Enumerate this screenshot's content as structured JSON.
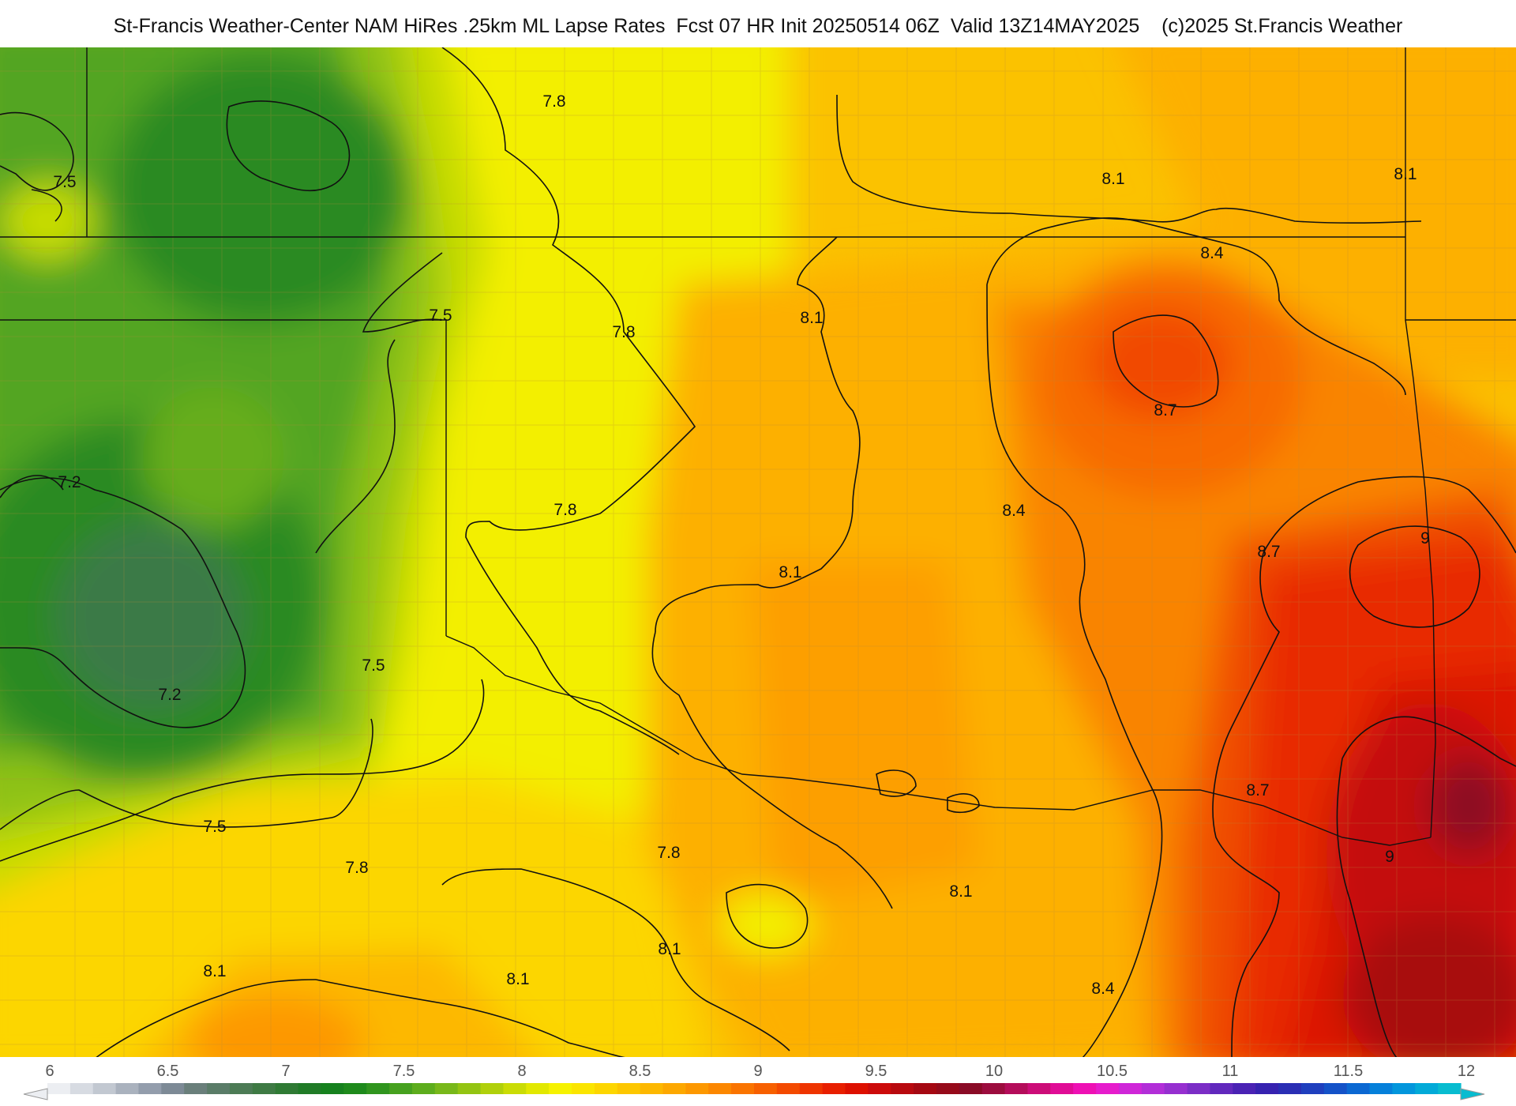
{
  "title": "St-Francis Weather-Center NAM HiRes .25km ML Lapse Rates  Fcst 07 HR Init 20250514 06Z  Valid 13Z14MAY2025    (c)2025 St.Francis Weather",
  "contour_labels": [
    "7.8",
    "7.5",
    "8.1",
    "8.1",
    "8.4",
    "7.5",
    "7.8",
    "8.1",
    "8.7",
    "7.2",
    "7.8",
    "8.4",
    "8.7",
    "9",
    "8.1",
    "7.5",
    "7.2",
    "8.7",
    "7.5",
    "7.8",
    "9",
    "8.1",
    "7.8",
    "8.1",
    "8.1",
    "8.1",
    "8.4"
  ],
  "colorbar": {
    "tick_labels": [
      "6",
      "6.5",
      "7",
      "7.5",
      "8",
      "8.5",
      "9",
      "9.5",
      "10",
      "10.5",
      "11",
      "11.5",
      "12"
    ],
    "range": [
      6,
      12
    ],
    "colors": [
      "#eceef2",
      "#d7dbe2",
      "#c2c8d1",
      "#aab2be",
      "#939dac",
      "#7d8a96",
      "#6a7f7b",
      "#5a7c68",
      "#4c7b55",
      "#3e7a44",
      "#2f7a34",
      "#207b27",
      "#16811e",
      "#1e8a1c",
      "#30951e",
      "#46a11f",
      "#5dad1d",
      "#78b81a",
      "#93c412",
      "#b0d00b",
      "#cadc05",
      "#e2e800",
      "#f6f200",
      "#fbe500",
      "#fdd600",
      "#fdc700",
      "#fdb800",
      "#fda800",
      "#fd9800",
      "#fc8700",
      "#fa7400",
      "#f76000",
      "#f34a00",
      "#ee3400",
      "#e81f00",
      "#dd1000",
      "#cc0b0b",
      "#b8090f",
      "#a50812",
      "#960a1a",
      "#8a0b26",
      "#9c0c3e",
      "#b40c5a",
      "#cc0c78",
      "#e00c96",
      "#ee10b4",
      "#e61ccc",
      "#cf26d8",
      "#b22ed8",
      "#962fd0",
      "#7b2dc6",
      "#6128bd",
      "#4a22b4",
      "#3622b0",
      "#2a2eb4",
      "#1f3fbe",
      "#1452c8",
      "#0b68d2",
      "#0580da",
      "#0296dc",
      "#02aad8",
      "#08bcd0"
    ]
  }
}
